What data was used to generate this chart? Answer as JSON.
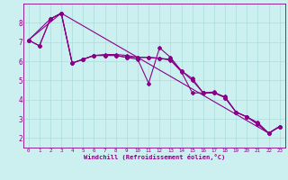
{
  "xlabel": "Windchill (Refroidissement éolien,°C)",
  "bg_color": "#ccf0f0",
  "grid_color": "#aadddd",
  "line_color": "#880088",
  "xlim": [
    -0.5,
    23.5
  ],
  "ylim": [
    1.5,
    9.0
  ],
  "yticks": [
    2,
    3,
    4,
    5,
    6,
    7,
    8
  ],
  "xticks": [
    0,
    1,
    2,
    3,
    4,
    5,
    6,
    7,
    8,
    9,
    10,
    11,
    12,
    13,
    14,
    15,
    16,
    17,
    18,
    19,
    20,
    21,
    22,
    23
  ],
  "series": [
    {
      "x": [
        0,
        1,
        2,
        3,
        4,
        5,
        6,
        7,
        8,
        9,
        10,
        11,
        12,
        13,
        14,
        15,
        16,
        17,
        18,
        19,
        20,
        21,
        22,
        23
      ],
      "y": [
        7.1,
        6.8,
        8.2,
        8.5,
        5.9,
        6.1,
        6.3,
        6.3,
        6.3,
        6.2,
        6.1,
        4.85,
        6.7,
        6.2,
        5.5,
        5.1,
        4.35,
        4.4,
        4.1,
        3.35,
        3.1,
        2.7,
        2.25,
        2.6
      ],
      "marker": true
    },
    {
      "x": [
        0,
        1,
        2,
        3,
        4,
        5,
        6,
        7,
        8,
        9,
        10,
        11,
        12,
        13,
        14,
        15,
        16,
        17,
        18,
        19,
        20,
        21,
        22,
        23
      ],
      "y": [
        7.1,
        6.8,
        8.2,
        8.5,
        5.9,
        6.1,
        6.3,
        6.3,
        6.3,
        6.2,
        6.2,
        6.2,
        6.15,
        6.05,
        5.45,
        4.35,
        4.35,
        4.35,
        4.1,
        3.35,
        3.1,
        2.8,
        2.25,
        2.6
      ],
      "marker": true
    },
    {
      "x": [
        0,
        2,
        3,
        4,
        5,
        6,
        7,
        8,
        9,
        10,
        11,
        12,
        13,
        14,
        15,
        16,
        17,
        18,
        19,
        20,
        21,
        22,
        23
      ],
      "y": [
        7.1,
        8.2,
        8.5,
        5.9,
        6.1,
        6.3,
        6.35,
        6.35,
        6.3,
        6.2,
        6.2,
        6.15,
        6.1,
        5.5,
        5.0,
        4.35,
        4.35,
        4.15,
        3.35,
        3.1,
        2.75,
        2.25,
        2.6
      ],
      "marker": true
    },
    {
      "x": [
        0,
        3,
        22,
        23
      ],
      "y": [
        7.1,
        8.5,
        2.25,
        2.6
      ],
      "marker": false
    }
  ]
}
